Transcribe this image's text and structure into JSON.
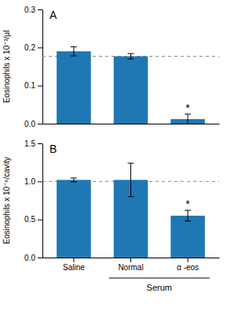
{
  "chart_data": [
    {
      "type": "bar",
      "ylabel": "Eosinophils x 10⁻³/μl",
      "categories": [
        "Saline",
        "Normal",
        "α -eos"
      ],
      "values": [
        0.19,
        0.177,
        0.012
      ],
      "errors": [
        0.012,
        0.007,
        0.013
      ],
      "reference_line": 0.177,
      "ylim": [
        0,
        0.3
      ],
      "yticks": [
        {
          "value": 0.0,
          "label": "0.0"
        },
        {
          "value": 0.1,
          "label": "0.1"
        },
        {
          "value": 0.2,
          "label": "0.2"
        },
        {
          "value": 0.3,
          "label": "0.3"
        }
      ],
      "tick_labels": "y",
      "annotations": [
        {
          "text": "A"
        },
        {
          "text": "*",
          "category": "α -eos"
        }
      ]
    },
    {
      "type": "bar",
      "ylabel": "Eosinophils x 10⁻⁶/cavity",
      "xlabel": "Serum",
      "categories": [
        "Saline",
        "Normal",
        "α -eos"
      ],
      "values": [
        1.02,
        1.02,
        0.55
      ],
      "errors": [
        0.025,
        0.22,
        0.07
      ],
      "reference_line": 1.0,
      "ylim": [
        0,
        1.5
      ],
      "yticks": [
        {
          "value": 0.0,
          "label": "0.0"
        },
        {
          "value": 0.5,
          "label": "0.5"
        },
        {
          "value": 1.0,
          "label": "1.0"
        },
        {
          "value": 1.5,
          "label": "1.5"
        }
      ],
      "annotations": [
        {
          "text": "B"
        },
        {
          "text": "*",
          "category": "α -eos"
        }
      ]
    }
  ]
}
